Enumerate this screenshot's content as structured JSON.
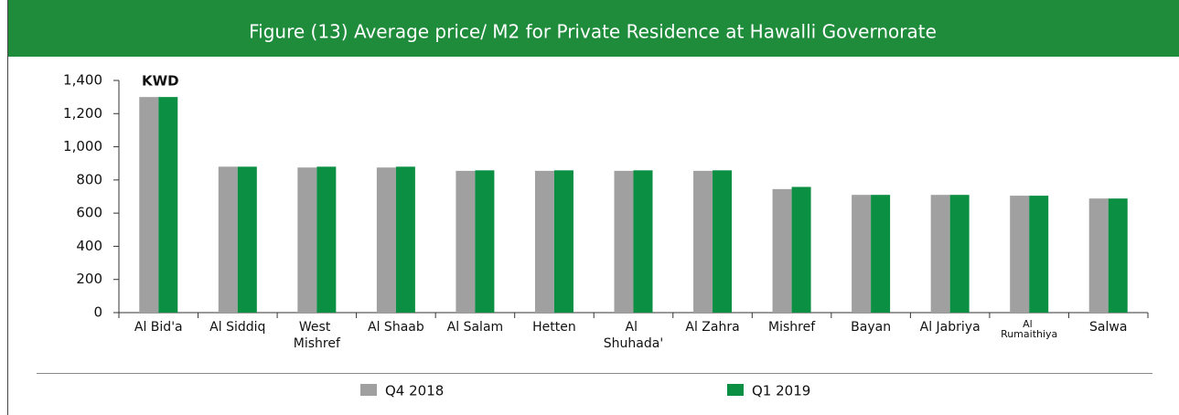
{
  "chart_data": {
    "type": "bar",
    "title": "Figure (13) Average price/ M2 for Private Residence at Hawalli Governorate",
    "y_label": "KWD",
    "categories": [
      "Al Bid'a",
      "Al Siddiq",
      "West Mishref",
      "Al Shaab",
      "Al Salam",
      "Hetten",
      "Al Shuhada'",
      "Al Zahra",
      "Mishref",
      "Bayan",
      "Al Jabriya",
      "Al Rumaithiya",
      "Salwa"
    ],
    "series": [
      {
        "name": "Q4 2018",
        "color": "#a0a0a0",
        "values": [
          1300,
          880,
          875,
          875,
          855,
          855,
          855,
          855,
          745,
          710,
          710,
          705,
          688
        ]
      },
      {
        "name": "Q1 2019",
        "color": "#0a8f43",
        "values": [
          1300,
          880,
          880,
          880,
          858,
          858,
          858,
          858,
          758,
          710,
          710,
          705,
          688
        ]
      }
    ],
    "ylim": [
      0,
      1400
    ],
    "yticks": [
      0,
      200,
      400,
      600,
      800,
      {
        "value": 1000,
        "label": "1,000"
      },
      {
        "value": 1200,
        "label": "1,200"
      },
      {
        "value": 1400,
        "label": "1,400"
      }
    ],
    "legend": "bottom"
  }
}
